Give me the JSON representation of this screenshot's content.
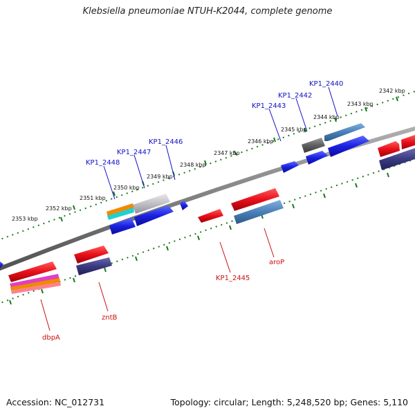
{
  "title": "Klebsiella pneumoniae NTUH-K2044, complete genome",
  "footer": {
    "accession": "Accession: NC_012731",
    "stats": "Topology: circular; Length: 5,248,520 bp; Genes: 5,110"
  },
  "ruler_labels": [
    "2342 kbp",
    "2343 kbp",
    "2344 kbp",
    "2345 kbp",
    "2346 kbp",
    "2347 kbp",
    "2348 kbp",
    "2349 kbp",
    "2350 kbp",
    "2351 kbp",
    "2352 kbp",
    "2353 kbp"
  ],
  "gene_labels_top": [
    "KP1_2440",
    "KP1_2442",
    "KP1_2443",
    "KP1_2446",
    "KP1_2447",
    "KP1_2448"
  ],
  "gene_labels_bottom": [
    "aroP",
    "KP1_2445",
    "zntB",
    "dbpA"
  ],
  "colors": {
    "backbone": "#808080",
    "ruler_ticks": "#1a7a1a",
    "gene_red": "#e8101a",
    "gene_blue": "#1a20e0",
    "gene_steel": "#4a7fb8",
    "gene_indigo": "#3a3a80",
    "gene_gray": "#606060",
    "gene_silver": "#c0c0c4",
    "label_top": "#1010c8",
    "label_bottom": "#c81010"
  }
}
